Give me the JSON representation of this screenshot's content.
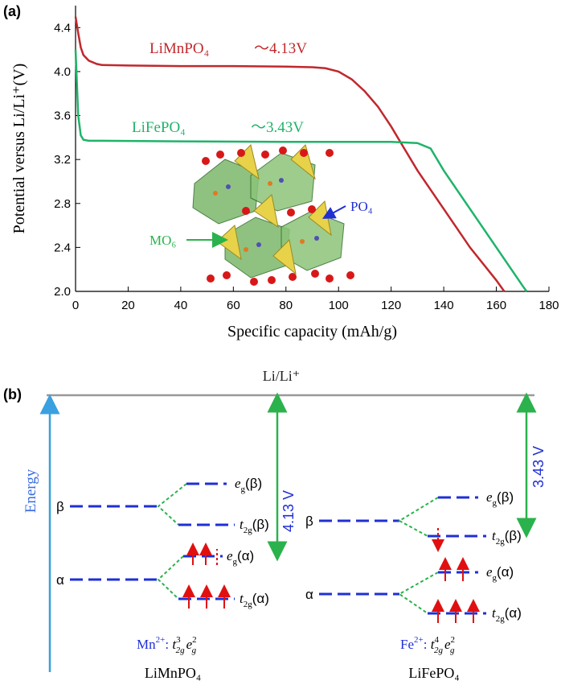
{
  "chart_data": {
    "type": "line",
    "panel_label": "(a)",
    "x_label": "Specific capacity (mAh/g)",
    "y_label": "Potential versus Li/Li⁺(V)",
    "xlim": [
      0,
      180
    ],
    "xticks": [
      0,
      20,
      40,
      60,
      80,
      100,
      120,
      140,
      160,
      180
    ],
    "ylim": [
      2.0,
      4.6
    ],
    "yticks": [
      {
        "value": 2,
        "label": "2.0"
      },
      2.4,
      2.8,
      3.2,
      3.6,
      {
        "value": 4,
        "label": "4.0"
      },
      4.4
    ],
    "series": [
      {
        "name": "LiMnPO₄",
        "annotation": "～4.13V",
        "color": "#c0282d",
        "x": [
          0,
          1,
          2,
          3,
          5,
          8,
          10,
          20,
          40,
          60,
          80,
          90,
          95,
          100,
          105,
          110,
          115,
          120,
          125,
          130,
          140,
          150,
          160,
          163
        ],
        "values": [
          4.5,
          4.35,
          4.22,
          4.15,
          4.1,
          4.07,
          4.06,
          4.055,
          4.05,
          4.05,
          4.045,
          4.04,
          4.03,
          4.0,
          3.93,
          3.82,
          3.68,
          3.5,
          3.3,
          3.1,
          2.75,
          2.4,
          2.1,
          2.0
        ]
      },
      {
        "name": "LiFePO₄",
        "annotation": "～3.43V",
        "color": "#1fb36a",
        "x": [
          0,
          1,
          2,
          3,
          5,
          10,
          40,
          80,
          120,
          130,
          135,
          140,
          150,
          160,
          170,
          171.5
        ],
        "values": [
          4.2,
          3.6,
          3.42,
          3.38,
          3.37,
          3.37,
          3.365,
          3.36,
          3.36,
          3.35,
          3.3,
          3.1,
          2.75,
          2.4,
          2.05,
          2.0
        ]
      }
    ],
    "structure_labels": [
      "PO₄",
      "MO₆"
    ]
  },
  "diagram": {
    "panel_label": "(b)",
    "reference": "Li/Li⁺",
    "axis_label": "Energy",
    "left": {
      "voltage": "4.13 V",
      "beta": "β",
      "alpha": "α",
      "levels": [
        [
          "e",
          "g",
          "(β)"
        ],
        [
          "t",
          "2g",
          "(β)"
        ],
        [
          "e",
          "g",
          "(α)"
        ],
        [
          "t",
          "2g",
          "(α)"
        ]
      ],
      "config": [
        "Mn",
        "2+",
        ": ",
        "t",
        "3",
        "2g",
        "e",
        "2",
        "g"
      ],
      "compound": "LiMnPO₄"
    },
    "right": {
      "voltage": "3.43 V",
      "beta": "β",
      "alpha": "α",
      "levels": [
        [
          "e",
          "g",
          "(β)"
        ],
        [
          "t",
          "2g",
          "(β)"
        ],
        [
          "e",
          "g",
          "(α)"
        ],
        [
          "t",
          "2g",
          "(α)"
        ]
      ],
      "config": [
        "Fe",
        "2+",
        ": ",
        "t",
        "4",
        "2g",
        "e",
        "2",
        "g"
      ],
      "compound": "LiFePO₄"
    }
  }
}
